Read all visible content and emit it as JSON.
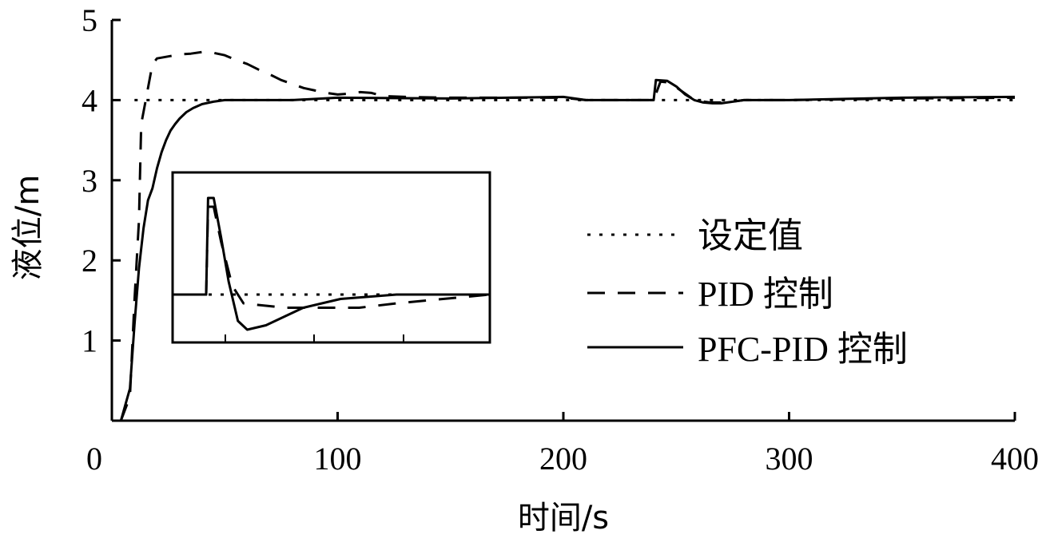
{
  "chart_data": {
    "type": "line",
    "xlabel": "时间/s",
    "ylabel": "液位/m",
    "xlim": [
      0,
      400
    ],
    "ylim": [
      0,
      5
    ],
    "xticks": [
      0,
      100,
      200,
      300,
      400
    ],
    "yticks": [
      1,
      2,
      3,
      4,
      5
    ],
    "grid": false,
    "legend_position": "right",
    "series": [
      {
        "name": "设定值",
        "style": "dotted",
        "x": [
          10,
          400
        ],
        "y": [
          4.0,
          4.0
        ]
      },
      {
        "name": "PID 控制",
        "style": "dashed",
        "x": [
          4,
          8,
          10,
          12,
          13,
          15,
          18,
          20,
          22,
          26,
          30,
          35,
          40,
          45,
          50,
          55,
          60,
          65,
          70,
          75,
          80,
          85,
          90,
          95,
          100,
          105,
          110,
          115,
          120,
          130,
          150,
          200,
          210,
          240,
          243,
          247,
          252,
          258,
          265,
          272,
          280,
          300,
          350,
          400
        ],
        "y": [
          0.0,
          0.3,
          1.5,
          2.5,
          3.7,
          4.0,
          4.45,
          4.52,
          4.53,
          4.55,
          4.57,
          4.58,
          4.6,
          4.59,
          4.56,
          4.5,
          4.45,
          4.38,
          4.32,
          4.25,
          4.2,
          4.15,
          4.12,
          4.09,
          4.07,
          4.08,
          4.1,
          4.09,
          4.05,
          4.04,
          4.03,
          4.03,
          4.0,
          4.0,
          4.23,
          4.22,
          4.12,
          4.0,
          3.97,
          3.97,
          4.0,
          4.0,
          4.02,
          4.03
        ]
      },
      {
        "name": "PFC-PID 控制",
        "style": "solid",
        "x": [
          4,
          8,
          10,
          12,
          14,
          16,
          18,
          20,
          22,
          24,
          26,
          28,
          30,
          33,
          36,
          40,
          45,
          50,
          60,
          80,
          100,
          150,
          200,
          210,
          240,
          241,
          246,
          250,
          254,
          258,
          262,
          266,
          270,
          275,
          280,
          300,
          350,
          400
        ],
        "y": [
          0.0,
          0.4,
          1.2,
          1.9,
          2.4,
          2.75,
          2.9,
          3.15,
          3.35,
          3.5,
          3.62,
          3.7,
          3.77,
          3.85,
          3.9,
          3.95,
          3.98,
          4.0,
          4.0,
          4.0,
          4.03,
          4.02,
          4.04,
          4.0,
          4.0,
          4.25,
          4.24,
          4.17,
          4.07,
          4.0,
          3.97,
          3.96,
          3.96,
          3.98,
          4.0,
          4.0,
          4.03,
          4.04
        ]
      }
    ]
  },
  "legend": {
    "items": [
      {
        "label": "设定值",
        "style": "dotted"
      },
      {
        "label": "PID 控制",
        "style": "dashed"
      },
      {
        "label": "PFC-PID 控制",
        "style": "solid"
      }
    ]
  }
}
